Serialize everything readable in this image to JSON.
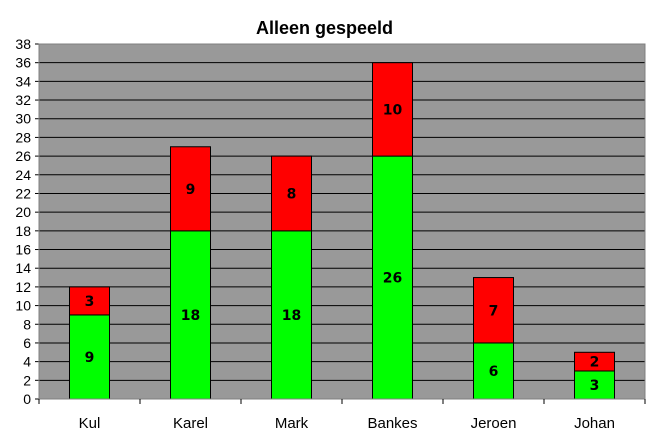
{
  "chart_data": {
    "type": "bar",
    "stacked": true,
    "title": "Alleen gespeeld",
    "categories": [
      "Kul",
      "Karel",
      "Mark",
      "Bankes",
      "Jeroen",
      "Johan"
    ],
    "series": [
      {
        "values": [
          9,
          18,
          18,
          26,
          6,
          3
        ],
        "color": "#00ff00"
      },
      {
        "values": [
          3,
          9,
          8,
          10,
          7,
          2
        ],
        "color": "#ff0000"
      }
    ],
    "ylim": [
      0,
      38
    ],
    "ytick_step": 2,
    "grid": true,
    "plot_background": "#999999",
    "legend": "none"
  }
}
